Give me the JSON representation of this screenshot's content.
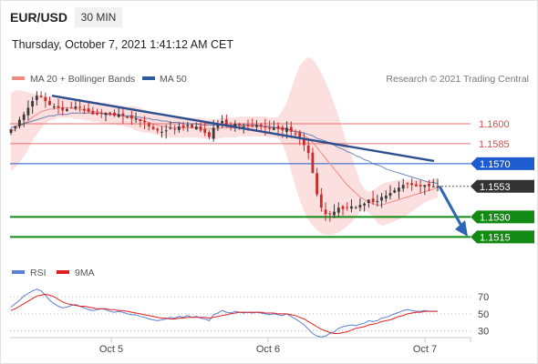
{
  "header": {
    "symbol": "EUR/USD",
    "timeframe": "30 MIN",
    "timestamp": "Thursday, October 7, 2021 1:41:12 AM CET"
  },
  "legend": {
    "items": [
      {
        "label": "MA 20 + Bollinger Bands",
        "color": "#f08a84"
      },
      {
        "label": "MA 50",
        "color": "#2c5a9e"
      }
    ],
    "credit": "Research © 2021 Trading Central"
  },
  "rsi_legend": {
    "items": [
      {
        "label": "RSI",
        "color": "#5b7fd6"
      },
      {
        "label": "9MA",
        "color": "#e02020"
      }
    ]
  },
  "colors": {
    "resistance": "#e34848",
    "pivot_blue": "#1e5bd1",
    "support_green": "#138a13",
    "current_price": "#333333",
    "trendline": "#2e4f8f",
    "arrow": "#2e66b5",
    "candle_up": "#3a3a3a",
    "candle_down": "#cc2929",
    "bb_fill": "#fbd4d4"
  },
  "chart_data": [
    {
      "type": "candlestick",
      "title": "",
      "x_ticks": [
        "Oct 5",
        "Oct 6",
        "Oct 7"
      ],
      "ylim": [
        1.1505,
        1.1628
      ],
      "levels": [
        {
          "label": "1.1600",
          "value": 1.16,
          "kind": "resistance"
        },
        {
          "label": "1.1585",
          "value": 1.1585,
          "kind": "resistance"
        },
        {
          "label": "1.1570",
          "value": 1.157,
          "kind": "pivot"
        },
        {
          "label": "1.1553",
          "value": 1.1553,
          "kind": "current"
        },
        {
          "label": "1.1530",
          "value": 1.153,
          "kind": "support"
        },
        {
          "label": "1.1515",
          "value": 1.1515,
          "kind": "support"
        }
      ],
      "trendline": {
        "from": [
          0,
          1.1621
        ],
        "to": [
          1,
          1.1572
        ]
      },
      "forecast_arrow": {
        "from": 1.1553,
        "to": 1.1518
      },
      "close_series": [
        1.1596,
        1.1598,
        1.1603,
        1.1607,
        1.1612,
        1.1617,
        1.1621,
        1.162,
        1.1617,
        1.1614,
        1.1613,
        1.1612,
        1.161,
        1.1611,
        1.1612,
        1.1613,
        1.1612,
        1.161,
        1.1609,
        1.1607,
        1.1607,
        1.1608,
        1.1608,
        1.1607,
        1.1606,
        1.1607,
        1.1606,
        1.1605,
        1.1604,
        1.1604,
        1.1602,
        1.1601,
        1.1598,
        1.1596,
        1.1595,
        1.1594,
        1.1595,
        1.1597,
        1.1596,
        1.1598,
        1.1597,
        1.1599,
        1.1597,
        1.1598,
        1.1595,
        1.1593,
        1.159,
        1.1597,
        1.1599,
        1.1602,
        1.1599,
        1.1598,
        1.16,
        1.1599,
        1.1598,
        1.1599,
        1.1598,
        1.1599,
        1.1598,
        1.1597,
        1.1596,
        1.1597,
        1.1596,
        1.1595,
        1.1597,
        1.1594,
        1.1592,
        1.1589,
        1.1584,
        1.1578,
        1.1563,
        1.1547,
        1.1537,
        1.1532,
        1.1532,
        1.1534,
        1.1537,
        1.1536,
        1.1537,
        1.1538,
        1.1537,
        1.1539,
        1.154,
        1.1543,
        1.1541,
        1.1542,
        1.1545,
        1.1546,
        1.1548,
        1.155,
        1.1552,
        1.1554,
        1.1555,
        1.1554,
        1.1553,
        1.1553,
        1.1554,
        1.1553,
        1.1553,
        1.1553
      ],
      "ma20_series": [
        1.1594,
        1.1596,
        1.1598,
        1.16,
        1.1602,
        1.1605,
        1.1607,
        1.1609,
        1.161,
        1.1611,
        1.1611,
        1.1612,
        1.1612,
        1.1612,
        1.1612,
        1.1611,
        1.1611,
        1.161,
        1.161,
        1.1609,
        1.1609,
        1.1608,
        1.1608,
        1.1607,
        1.1607,
        1.1606,
        1.1606,
        1.1605,
        1.1605,
        1.1604,
        1.1603,
        1.1602,
        1.1601,
        1.16,
        1.1599,
        1.1598,
        1.1598,
        1.1597,
        1.1597,
        1.1597,
        1.1597,
        1.1597,
        1.1597,
        1.1597,
        1.1597,
        1.1596,
        1.1596,
        1.1596,
        1.1596,
        1.1597,
        1.1597,
        1.1597,
        1.1597,
        1.1598,
        1.1598,
        1.1598,
        1.1598,
        1.1598,
        1.1598,
        1.1598,
        1.1597,
        1.1597,
        1.1597,
        1.1597,
        1.1596,
        1.1595,
        1.1594,
        1.1593,
        1.1591,
        1.1589,
        1.1586,
        1.1582,
        1.1578,
        1.1574,
        1.157,
        1.1566,
        1.1562,
        1.1558,
        1.1554,
        1.1551,
        1.1548,
        1.1545,
        1.1543,
        1.1541,
        1.154,
        1.1539,
        1.1539,
        1.154,
        1.1541,
        1.1542,
        1.1543,
        1.1544,
        1.1545,
        1.1546,
        1.1547,
        1.1548,
        1.1549,
        1.155,
        1.1551,
        1.1552
      ],
      "ma50_series": [
        1.1597,
        1.1598,
        1.1599,
        1.16,
        1.1601,
        1.1602,
        1.1603,
        1.1604,
        1.1605,
        1.1606,
        1.1606,
        1.1607,
        1.1607,
        1.1607,
        1.1608,
        1.1608,
        1.1608,
        1.1608,
        1.1608,
        1.1608,
        1.1608,
        1.1608,
        1.1607,
        1.1607,
        1.1607,
        1.1607,
        1.1606,
        1.1606,
        1.1606,
        1.1605,
        1.1605,
        1.1604,
        1.1604,
        1.1603,
        1.1603,
        1.1602,
        1.1602,
        1.1601,
        1.1601,
        1.1601,
        1.16,
        1.16,
        1.16,
        1.16,
        1.1599,
        1.1599,
        1.1599,
        1.1599,
        1.1599,
        1.1599,
        1.1599,
        1.1599,
        1.1599,
        1.1599,
        1.1599,
        1.1599,
        1.1599,
        1.1599,
        1.1598,
        1.1598,
        1.1598,
        1.1597,
        1.1597,
        1.1596,
        1.1596,
        1.1595,
        1.1594,
        1.1594,
        1.1593,
        1.1592,
        1.1591,
        1.1589,
        1.1588,
        1.1587,
        1.1585,
        1.1584,
        1.1582,
        1.1581,
        1.1579,
        1.1578,
        1.1576,
        1.1575,
        1.1573,
        1.1572,
        1.157,
        1.1569,
        1.1568,
        1.1566,
        1.1565,
        1.1564,
        1.1563,
        1.1562,
        1.1561,
        1.156,
        1.1559,
        1.1558,
        1.1557,
        1.1556,
        1.1556,
        1.1555
      ]
    },
    {
      "type": "line",
      "title": "",
      "yticks": [
        "70",
        "50",
        "30"
      ],
      "ylim": [
        20,
        82
      ],
      "series": [
        {
          "name": "RSI",
          "values": [
            58,
            62,
            66,
            71,
            74,
            77,
            79,
            77,
            72,
            66,
            62,
            59,
            57,
            58,
            60,
            61,
            59,
            57,
            55,
            54,
            55,
            56,
            55,
            53,
            52,
            53,
            52,
            50,
            49,
            49,
            47,
            46,
            44,
            43,
            42,
            43,
            44,
            46,
            45,
            47,
            46,
            48,
            46,
            47,
            45,
            44,
            42,
            49,
            51,
            54,
            52,
            51,
            53,
            52,
            51,
            52,
            51,
            52,
            51,
            50,
            49,
            50,
            49,
            48,
            50,
            47,
            44,
            41,
            37,
            32,
            27,
            24,
            23,
            24,
            27,
            29,
            33,
            35,
            36,
            37,
            36,
            38,
            39,
            42,
            41,
            42,
            45,
            46,
            48,
            50,
            52,
            54,
            55,
            54,
            53,
            53,
            54,
            53,
            53,
            53
          ]
        },
        {
          "name": "9MA",
          "values": [
            54,
            56,
            59,
            62,
            65,
            68,
            71,
            72,
            73,
            72,
            70,
            67,
            64,
            62,
            61,
            60,
            59,
            59,
            58,
            57,
            56,
            56,
            56,
            55,
            55,
            54,
            54,
            53,
            52,
            51,
            50,
            49,
            48,
            47,
            46,
            45,
            45,
            44,
            44,
            45,
            45,
            46,
            46,
            46,
            46,
            46,
            45,
            46,
            47,
            48,
            49,
            50,
            51,
            52,
            52,
            52,
            52,
            52,
            52,
            51,
            51,
            51,
            50,
            50,
            50,
            49,
            48,
            46,
            44,
            41,
            38,
            35,
            32,
            30,
            28,
            27,
            27,
            28,
            29,
            31,
            33,
            34,
            35,
            37,
            38,
            39,
            41,
            42,
            43,
            45,
            47,
            48,
            50,
            51,
            52,
            52,
            53,
            53,
            53,
            53
          ]
        }
      ]
    }
  ]
}
